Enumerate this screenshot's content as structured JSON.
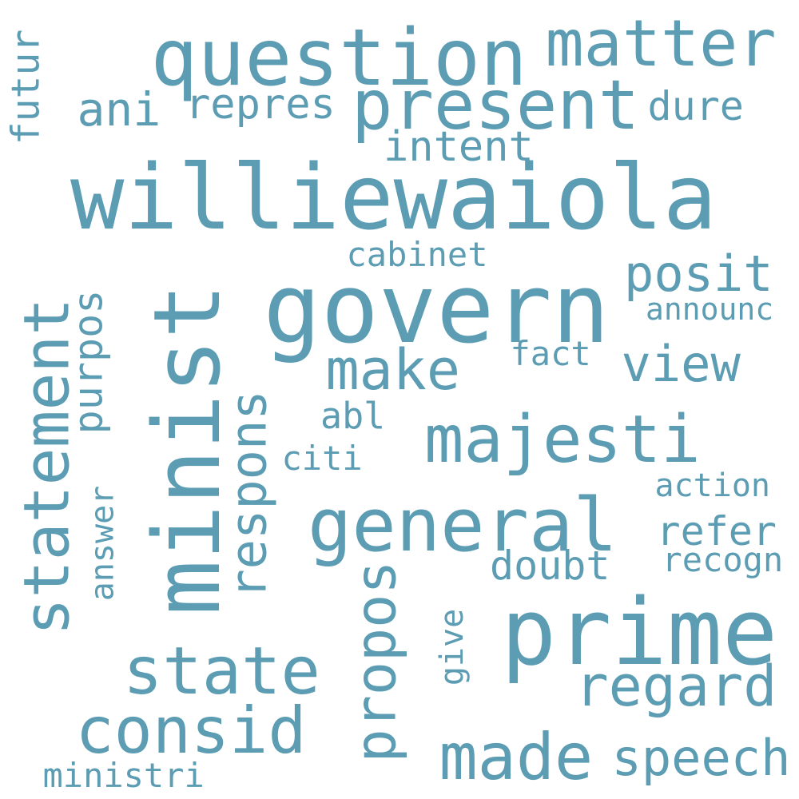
{
  "color": "#5c9db4",
  "words": [
    "williewaiola",
    "minist",
    "govern",
    "prime",
    "question",
    "present",
    "statement",
    "majesti",
    "general",
    "matter",
    "state",
    "consid",
    "made",
    "propos",
    "regard",
    "make",
    "respons",
    "view",
    "posit",
    "speech",
    "repres",
    "ani",
    "dure",
    "purpos",
    "intent",
    "doubt",
    "refer",
    "futur",
    "answer",
    "ministri",
    "cabinet",
    "recogn",
    "give",
    "announc",
    "citi",
    "fact",
    "action",
    "abl"
  ]
}
